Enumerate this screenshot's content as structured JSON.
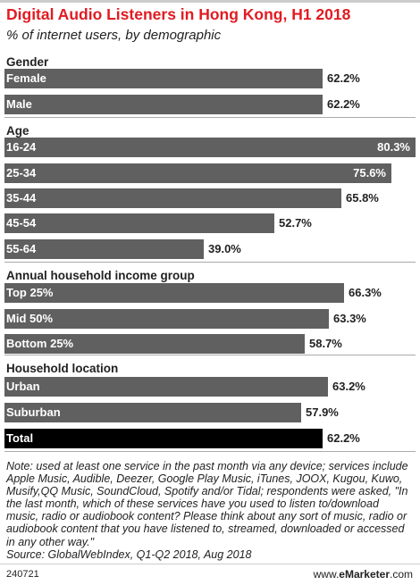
{
  "chart_data": {
    "type": "bar",
    "orientation": "horizontal",
    "title": "Digital Audio Listeners in Hong Kong, H1 2018",
    "subtitle": "% of internet users, by demographic",
    "value_suffix": "%",
    "xlim": [
      0,
      80.3
    ],
    "groups": [
      {
        "name": "Gender",
        "items": [
          {
            "label": "Female",
            "value": 62.2,
            "display": "62.2%"
          },
          {
            "label": "Male",
            "value": 62.2,
            "display": "62.2%"
          }
        ]
      },
      {
        "name": "Age",
        "items": [
          {
            "label": "16-24",
            "value": 80.3,
            "display": "80.3%"
          },
          {
            "label": "25-34",
            "value": 75.6,
            "display": "75.6%"
          },
          {
            "label": "35-44",
            "value": 65.8,
            "display": "65.8%"
          },
          {
            "label": "45-54",
            "value": 52.7,
            "display": "52.7%"
          },
          {
            "label": "55-64",
            "value": 39.0,
            "display": "39.0%"
          }
        ]
      },
      {
        "name": "Annual household income group",
        "items": [
          {
            "label": "Top 25%",
            "value": 66.3,
            "display": "66.3%"
          },
          {
            "label": "Mid 50%",
            "value": 63.3,
            "display": "63.3%"
          },
          {
            "label": "Bottom 25%",
            "value": 58.7,
            "display": "58.7%"
          }
        ]
      },
      {
        "name": "Household location",
        "items": [
          {
            "label": "Urban",
            "value": 63.2,
            "display": "63.2%"
          },
          {
            "label": "Suburban",
            "value": 57.9,
            "display": "57.9%"
          },
          {
            "label": "Total",
            "value": 62.2,
            "display": "62.2%",
            "highlight": true
          }
        ]
      }
    ],
    "colors": {
      "bar": "#606060",
      "total_bar": "#000000",
      "title": "#e11b22"
    }
  },
  "note": "Note: used at least one service in the past month via any device; services include Apple Music, Audible, Deezer, Google Play Music, iTunes, JOOX, Kugou, Kuwo, Musify,QQ Music, SoundCloud, Spotify and/or Tidal; respondents were asked, \"In the last month, which of these services have you used to listen to/download music, radio or audiobook content? Please think about any sort of music, radio or audiobook content that you have listened to, streamed, downloaded or accessed in any other way.\"",
  "source": "Source: GlobalWebIndex, Q1-Q2 2018, Aug 2018",
  "footer": {
    "chart_id": "240721",
    "brand_prefix": "www.",
    "brand_name": "eMarketer",
    "brand_suffix": ".com"
  }
}
